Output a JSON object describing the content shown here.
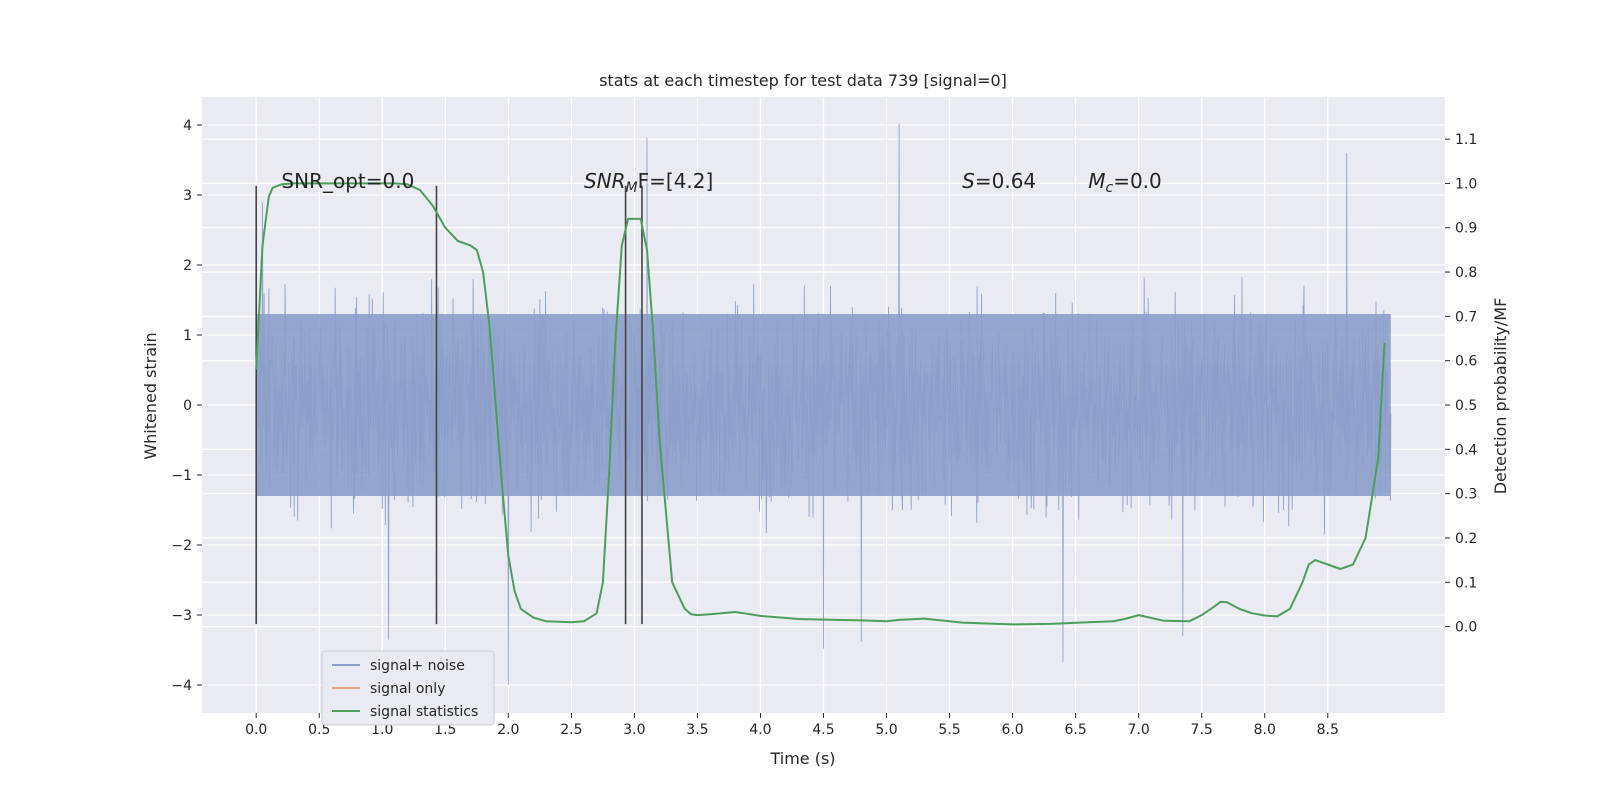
{
  "chart_data": {
    "type": "line",
    "title": "stats at each timestep for test data 739 [signal=0]",
    "xlabel": "Time (s)",
    "ylabel": "Whitened strain",
    "ylabel_right": "Detection probability/MF",
    "xlim": [
      -0.43,
      9.43
    ],
    "ylim": [
      -4.4,
      4.4
    ],
    "ylim_right": [
      -0.195,
      1.195
    ],
    "x_ticks": [
      0.0,
      0.5,
      1.0,
      1.5,
      2.0,
      2.5,
      3.0,
      3.5,
      4.0,
      4.5,
      5.0,
      5.5,
      6.0,
      6.5,
      7.0,
      7.5,
      8.0,
      8.5
    ],
    "x_tick_labels": [
      "0.0",
      "0.5",
      "1.0",
      "1.5",
      "2.0",
      "2.5",
      "3.0",
      "3.5",
      "4.0",
      "4.5",
      "5.0",
      "5.5",
      "6.0",
      "6.5",
      "7.0",
      "7.5",
      "8.0",
      "8.5"
    ],
    "y_ticks": [
      4,
      3,
      2,
      1,
      0,
      -1,
      -2,
      -3,
      -4
    ],
    "y_tick_labels": [
      "4",
      "3",
      "2",
      "1",
      "0",
      "−1",
      "−2",
      "−3",
      "−4"
    ],
    "y_right_ticks": [
      1.1,
      1.0,
      0.9,
      0.8,
      0.7,
      0.6,
      0.5,
      0.4,
      0.3,
      0.2,
      0.1,
      0.0
    ],
    "y_right_tick_labels": [
      "1.1",
      "1.0",
      "0.9",
      "0.8",
      "0.7",
      "0.6",
      "0.5",
      "0.4",
      "0.3",
      "0.2",
      "0.1",
      "0.0"
    ],
    "grid": true,
    "legend_position": "lower-left",
    "legend": [
      {
        "label": "signal+ noise",
        "color": "#8c9fca"
      },
      {
        "label": "signal only",
        "color": "#e6a488"
      },
      {
        "label": "signal statistics",
        "color": "#4c9f5a"
      }
    ],
    "annotations": [
      {
        "text": "SNR_opt=0.0",
        "x": 0.2,
        "y": 3.2
      },
      {
        "text": "SNR",
        "sub": "M",
        "rest": "F=[4.2]",
        "x": 2.6,
        "y": 3.2,
        "italic": true
      },
      {
        "text": "S",
        "rest": "=0.64",
        "x": 5.6,
        "y": 3.2,
        "italic": true
      },
      {
        "text": "M",
        "sub": "c",
        "rest": "=0.0",
        "x": 6.6,
        "y": 3.2,
        "italic": true
      }
    ],
    "vertical_markers": [
      0.0,
      1.43,
      2.93,
      3.06
    ],
    "vertical_marker_range": [
      -3.13,
      3.13
    ],
    "series": [
      {
        "name": "signal+ noise",
        "axis": "left",
        "color": "#8c9fca",
        "x_range": [
          0.0,
          9.0
        ],
        "envelope_core": 1.3,
        "extreme_peaks": [
          {
            "x": 5.1,
            "y": 4.02
          },
          {
            "x": 3.1,
            "y": 3.82
          },
          {
            "x": 8.65,
            "y": 3.6
          },
          {
            "x": 0.05,
            "y": 2.9
          },
          {
            "x": 2.0,
            "y": -4.0
          },
          {
            "x": 6.4,
            "y": -3.67
          },
          {
            "x": 4.5,
            "y": -3.48
          },
          {
            "x": 4.8,
            "y": -3.38
          },
          {
            "x": 1.05,
            "y": -3.35
          },
          {
            "x": 7.35,
            "y": -3.3
          }
        ]
      },
      {
        "name": "signal statistics",
        "axis": "right",
        "color": "#4c9f5a",
        "x": [
          0.0,
          0.05,
          0.1,
          0.13,
          0.2,
          0.3,
          0.5,
          0.8,
          1.1,
          1.2,
          1.3,
          1.4,
          1.5,
          1.6,
          1.7,
          1.75,
          1.8,
          1.85,
          1.9,
          1.95,
          2.0,
          2.05,
          2.1,
          2.2,
          2.3,
          2.5,
          2.6,
          2.7,
          2.75,
          2.8,
          2.85,
          2.9,
          2.95,
          3.0,
          3.05,
          3.1,
          3.15,
          3.2,
          3.3,
          3.4,
          3.45,
          3.5,
          3.6,
          3.8,
          4.0,
          4.3,
          4.6,
          4.8,
          5.0,
          5.1,
          5.3,
          5.6,
          6.0,
          6.3,
          6.6,
          6.8,
          6.9,
          7.0,
          7.2,
          7.4,
          7.5,
          7.6,
          7.65,
          7.7,
          7.8,
          7.9,
          8.0,
          8.1,
          8.2,
          8.3,
          8.35,
          8.4,
          8.5,
          8.6,
          8.7,
          8.8,
          8.9,
          8.95
        ],
        "y": [
          0.58,
          0.86,
          0.97,
          0.99,
          0.998,
          1.0,
          1.0,
          1.0,
          1.0,
          0.998,
          0.985,
          0.95,
          0.9,
          0.87,
          0.86,
          0.85,
          0.8,
          0.68,
          0.5,
          0.32,
          0.16,
          0.08,
          0.04,
          0.02,
          0.012,
          0.01,
          0.012,
          0.03,
          0.1,
          0.35,
          0.65,
          0.86,
          0.92,
          0.92,
          0.92,
          0.85,
          0.66,
          0.42,
          0.1,
          0.04,
          0.028,
          0.026,
          0.028,
          0.033,
          0.024,
          0.017,
          0.015,
          0.014,
          0.012,
          0.015,
          0.018,
          0.009,
          0.005,
          0.006,
          0.01,
          0.012,
          0.018,
          0.026,
          0.013,
          0.012,
          0.026,
          0.045,
          0.056,
          0.055,
          0.04,
          0.03,
          0.025,
          0.023,
          0.04,
          0.1,
          0.14,
          0.15,
          0.14,
          0.13,
          0.14,
          0.2,
          0.38,
          0.64
        ]
      }
    ]
  }
}
